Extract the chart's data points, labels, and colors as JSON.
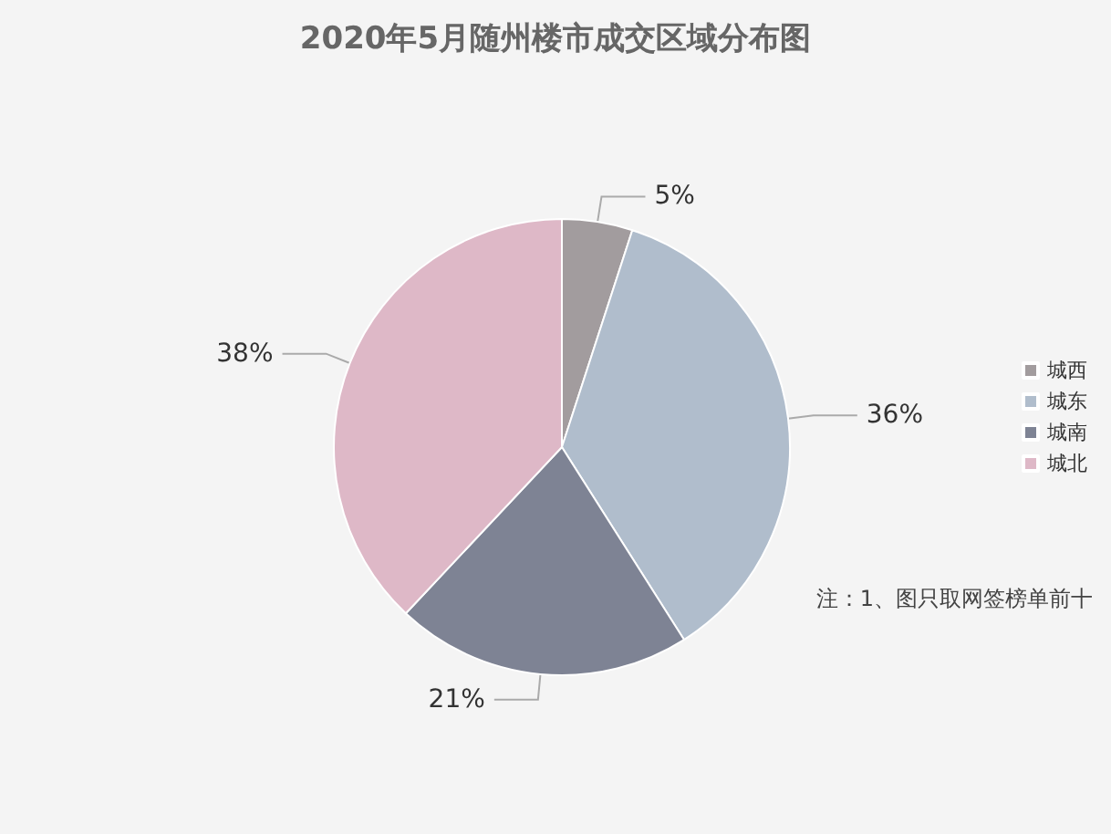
{
  "chart_data": {
    "type": "pie",
    "title": "2020年5月随州楼市成交区域分布图",
    "categories": [
      "城西",
      "城东",
      "城南",
      "城北"
    ],
    "values": [
      5,
      36,
      21,
      38
    ],
    "value_labels": [
      "5%",
      "36%",
      "21%",
      "38%"
    ],
    "colors": [
      "#a29c9e",
      "#b0bdcc",
      "#7e8394",
      "#deb8c7"
    ],
    "legend": "right",
    "annotations": [
      "注：1、图只取网签榜单前十"
    ]
  }
}
